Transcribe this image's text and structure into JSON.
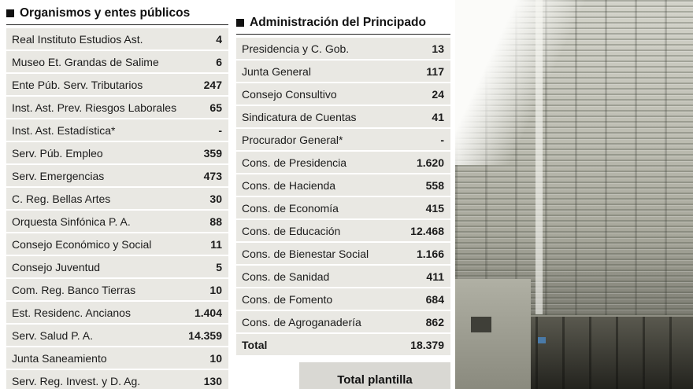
{
  "chart_data": [
    {
      "type": "table",
      "title": "Organismos y entes públicos",
      "rows": [
        {
          "label": "Real Instituto Estudios Ast.",
          "value": "4"
        },
        {
          "label": "Museo Et. Grandas de Salime",
          "value": "6"
        },
        {
          "label": "Ente Púb. Serv. Tributarios",
          "value": "247"
        },
        {
          "label": "Inst. Ast. Prev. Riesgos Laborales",
          "value": "65"
        },
        {
          "label": "Inst. Ast. Estadística*",
          "value": "-"
        },
        {
          "label": "Serv. Púb. Empleo",
          "value": "359"
        },
        {
          "label": "Serv. Emergencias",
          "value": "473"
        },
        {
          "label": "C. Reg. Bellas Artes",
          "value": "30"
        },
        {
          "label": "Orquesta Sinfónica P. A.",
          "value": "88"
        },
        {
          "label": "Consejo Económico y Social",
          "value": "11"
        },
        {
          "label": "Consejo Juventud",
          "value": "5"
        },
        {
          "label": "Com. Reg. Banco Tierras",
          "value": "10"
        },
        {
          "label": "Est. Residenc. Ancianos",
          "value": "1.404"
        },
        {
          "label": "Serv. Salud P. A.",
          "value": "14.359"
        },
        {
          "label": "Junta Saneamiento",
          "value": "10"
        },
        {
          "label": "Serv. Reg. Invest. y D. Ag.",
          "value": "130"
        }
      ]
    },
    {
      "type": "table",
      "title": "Administración del Principado",
      "rows": [
        {
          "label": "Presidencia y C. Gob.",
          "value": "13"
        },
        {
          "label": "Junta General",
          "value": "117"
        },
        {
          "label": "Consejo Consultivo",
          "value": "24"
        },
        {
          "label": "Sindicatura de Cuentas",
          "value": "41"
        },
        {
          "label": "Procurador General*",
          "value": "-"
        },
        {
          "label": "Cons. de Presidencia",
          "value": "1.620"
        },
        {
          "label": "Cons. de Hacienda",
          "value": "558"
        },
        {
          "label": "Cons. de Economía",
          "value": "415"
        },
        {
          "label": "Cons. de Educación",
          "value": "12.468"
        },
        {
          "label": "Cons. de Bienestar Social",
          "value": "1.166"
        },
        {
          "label": "Cons. de Sanidad",
          "value": "411"
        },
        {
          "label": "Cons. de Fomento",
          "value": "684"
        },
        {
          "label": "Cons. de Agroganadería",
          "value": "862"
        }
      ],
      "total_row": {
        "label": "Total",
        "value": "18.379"
      }
    }
  ],
  "footer": {
    "total_box_label": "Total plantilla"
  },
  "icons": {
    "section_bullet": "black-square"
  },
  "colors": {
    "row_bg": "#e9e8e3",
    "total_box_bg": "#d9d8d3",
    "text": "#1b1b1b"
  }
}
